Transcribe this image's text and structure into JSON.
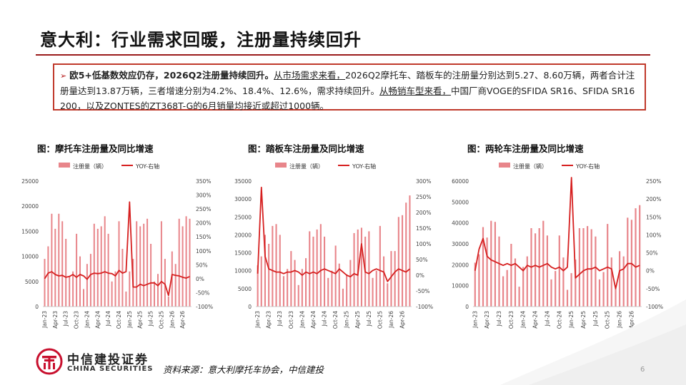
{
  "title": "意大利：行业需求回暖，注册量持续回升",
  "summary": {
    "bullet": "➢",
    "bold_lead": "欧5+低基数效应仍存，2026Q2注册量持续回升。",
    "underline_1": "从市场需求来看，",
    "text_1": "2026Q2摩托车、踏板车的注册量分别达到5.27、8.60万辆，两者合计注册量达到13.87万辆，三者增速分别为4.2%、18.4%、12.6%，需求持续回升。",
    "underline_2": "从畅销车型来看，",
    "text_2": "中国厂商VOGE的SFIDA SR16、SFIDA SR16 200，以及ZONTES的ZT368T-G的6月销量均接近或超过1000辆。"
  },
  "footer": {
    "source": "资料来源：意大利摩托车协会，中信建投",
    "page": "6",
    "logo_cn": "中信建投证券",
    "logo_en": "CHINA SECURITIES"
  },
  "colors": {
    "bar": "#e8858a",
    "line": "#d61f1f",
    "accent": "#9b1b1b",
    "box": "#c0392b"
  },
  "chart_data": [
    {
      "type": "bar",
      "title": "图：摩托车注册量及同比增速",
      "legend": [
        "注册量（辆）",
        "YOY-右轴"
      ],
      "legend_position": "top",
      "categories": [
        "Jan-23",
        "Feb-23",
        "Mar-23",
        "Apr-23",
        "May-23",
        "Jun-23",
        "Jul-23",
        "Aug-23",
        "Sep-23",
        "Oct-23",
        "Nov-23",
        "Dec-23",
        "Jan-24",
        "Feb-24",
        "Mar-24",
        "Apr-24",
        "May-24",
        "Jun-24",
        "Jul-24",
        "Aug-24",
        "Sep-24",
        "Oct-24",
        "Nov-24",
        "Dec-24",
        "Jan-25",
        "Feb-25",
        "Mar-25",
        "Apr-25",
        "May-25",
        "Jun-25",
        "Jul-25",
        "Aug-25",
        "Sep-25",
        "Oct-25",
        "Nov-25",
        "Dec-25",
        "Jan-26",
        "Feb-26",
        "Mar-26",
        "Apr-26",
        "May-26",
        "Jun-26"
      ],
      "tick_labels": [
        "Jan-23",
        "Apr-23",
        "Jul-23",
        "Oct-23",
        "Jan-24",
        "Apr-24",
        "Jul-24",
        "Oct-24",
        "Jan-25",
        "Apr-25",
        "Jul-25",
        "Oct-25",
        "Jan-26",
        "Apr-26"
      ],
      "series": [
        {
          "name": "注册量（辆）",
          "axis": "left",
          "type": "bar",
          "values": [
            9500,
            12000,
            18500,
            15500,
            18500,
            17000,
            13500,
            6000,
            7000,
            14500,
            10000,
            3500,
            8500,
            10500,
            16500,
            15500,
            16000,
            18000,
            14500,
            5000,
            7000,
            17000,
            11500,
            3000,
            7000,
            9500,
            17000,
            16000,
            16500,
            17500,
            12500,
            5000,
            6500,
            17000,
            9500,
            2000,
            11000,
            8500,
            17500,
            16000,
            18000,
            17500
          ]
        },
        {
          "name": "YOY-右轴",
          "axis": "right",
          "type": "line",
          "values": [
            0,
            20,
            25,
            15,
            10,
            12,
            5,
            8,
            15,
            5,
            15,
            10,
            -2,
            15,
            20,
            18,
            20,
            25,
            20,
            18,
            10,
            30,
            20,
            25,
            275,
            -30,
            -30,
            -20,
            -25,
            -20,
            -15,
            -15,
            -25,
            -10,
            -20,
            -60,
            15,
            12,
            10,
            5,
            2,
            8
          ]
        }
      ],
      "ylim_left": [
        0,
        25000
      ],
      "ylim_right": [
        -100,
        350
      ],
      "yticks_left": [
        "0",
        "5000",
        "10000",
        "15000",
        "20000",
        "25000"
      ],
      "yticks_right": [
        "-100%",
        "-50%",
        "0%",
        "50%",
        "100%",
        "150%",
        "200%",
        "250%",
        "300%",
        "350%"
      ]
    },
    {
      "type": "bar",
      "title": "图：踏板车注册量及同比增速",
      "legend": [
        "注册量（辆）",
        "YOY-右轴"
      ],
      "legend_position": "top",
      "categories": [
        "Jan-23",
        "Feb-23",
        "Mar-23",
        "Apr-23",
        "May-23",
        "Jun-23",
        "Jul-23",
        "Aug-23",
        "Sep-23",
        "Oct-23",
        "Nov-23",
        "Dec-23",
        "Jan-24",
        "Feb-24",
        "Mar-24",
        "Apr-24",
        "May-24",
        "Jun-24",
        "Jul-24",
        "Aug-24",
        "Sep-24",
        "Oct-24",
        "Nov-24",
        "Dec-24",
        "Jan-25",
        "Feb-25",
        "Mar-25",
        "Apr-25",
        "May-25",
        "Jun-25",
        "Jul-25",
        "Aug-25",
        "Sep-25",
        "Oct-25",
        "Nov-25",
        "Dec-25",
        "Jan-26",
        "Feb-26",
        "Mar-26",
        "Apr-26",
        "May-26",
        "Jun-26"
      ],
      "tick_labels": [
        "Jan-23",
        "Apr-23",
        "Jul-23",
        "Oct-23",
        "Jan-24",
        "Apr-24",
        "Jul-24",
        "Oct-24",
        "Jan-25",
        "Apr-25",
        "Jul-25",
        "Oct-25",
        "Jan-26",
        "Apr-26"
      ],
      "series": [
        {
          "name": "注册量（辆）",
          "axis": "left",
          "type": "bar",
          "values": [
            11500,
            14000,
            20000,
            17500,
            22500,
            23000,
            20000,
            8500,
            10500,
            15500,
            13000,
            6000,
            10500,
            13500,
            21000,
            19500,
            21500,
            23000,
            19500,
            8000,
            10000,
            17000,
            12000,
            5000,
            9000,
            13000,
            20500,
            21500,
            22000,
            19500,
            21000,
            8000,
            10000,
            22500,
            14000,
            6500,
            15500,
            15500,
            25000,
            25500,
            29000,
            31000
          ]
        },
        {
          "name": "YOY-右轴",
          "axis": "right",
          "type": "line",
          "values": [
            5,
            280,
            60,
            20,
            15,
            10,
            10,
            5,
            10,
            10,
            15,
            10,
            0,
            10,
            5,
            10,
            5,
            15,
            20,
            15,
            10,
            5,
            20,
            10,
            0,
            -5,
            5,
            0,
            100,
            10,
            5,
            15,
            20,
            15,
            10,
            -20,
            -5,
            10,
            20,
            15,
            10,
            20
          ]
        }
      ],
      "ylim_left": [
        0,
        35000
      ],
      "ylim_right": [
        -100,
        300
      ],
      "yticks_left": [
        "0",
        "5000",
        "10000",
        "15000",
        "20000",
        "25000",
        "30000",
        "35000"
      ],
      "yticks_right": [
        "-100%",
        "-50%",
        "0%",
        "50%",
        "100%",
        "150%",
        "200%",
        "250%",
        "300%"
      ]
    },
    {
      "type": "bar",
      "title": "图：两轮车注册量及同比增速",
      "legend": [
        "注册量（辆）",
        "YOY-右轴"
      ],
      "legend_position": "top",
      "categories": [
        "Jan-23",
        "Feb-23",
        "Mar-23",
        "Apr-23",
        "May-23",
        "Jun-23",
        "Jul-23",
        "Aug-23",
        "Sep-23",
        "Oct-23",
        "Nov-23",
        "Dec-23",
        "Jan-24",
        "Feb-24",
        "Mar-24",
        "Apr-24",
        "May-24",
        "Jun-24",
        "Jul-24",
        "Aug-24",
        "Sep-24",
        "Oct-24",
        "Nov-24",
        "Dec-24",
        "Jan-25",
        "Feb-25",
        "Mar-25",
        "Apr-25",
        "May-25",
        "Jun-25",
        "Jul-25",
        "Aug-25",
        "Sep-25",
        "Oct-25",
        "Nov-25",
        "Dec-25",
        "Jan-26",
        "Feb-26",
        "Mar-26",
        "Apr-26",
        "May-26",
        "Jun-26"
      ],
      "tick_labels": [
        "Jan-23",
        "Apr-23",
        "Jul-23",
        "Oct-23",
        "Jan-24",
        "Apr-24",
        "Jul-24",
        "Oct-24",
        "Jan-25",
        "Apr-25",
        "Jul-25",
        "Oct-25",
        "Jan-26",
        "Apr-26"
      ],
      "series": [
        {
          "name": "注册量（辆）",
          "axis": "left",
          "type": "bar",
          "values": [
            21000,
            25000,
            38000,
            33000,
            41000,
            40500,
            33500,
            14500,
            17500,
            30000,
            23000,
            9500,
            19000,
            24000,
            37500,
            35000,
            37500,
            41000,
            34000,
            13000,
            17000,
            34000,
            23500,
            8000,
            16000,
            22500,
            37500,
            37500,
            38500,
            37000,
            33500,
            13000,
            16500,
            39500,
            23500,
            8500,
            26500,
            24000,
            42500,
            41500,
            47000,
            48500
          ]
        },
        {
          "name": "YOY-右轴",
          "axis": "right",
          "type": "line",
          "values": [
            0,
            60,
            90,
            40,
            30,
            25,
            20,
            15,
            20,
            15,
            20,
            10,
            0,
            15,
            10,
            15,
            10,
            15,
            20,
            10,
            5,
            10,
            0,
            10,
            260,
            -20,
            -10,
            0,
            5,
            5,
            10,
            0,
            5,
            10,
            5,
            -50,
            0,
            5,
            20,
            20,
            10,
            15
          ]
        }
      ],
      "ylim_left": [
        0,
        60000
      ],
      "ylim_right": [
        -100,
        250
      ],
      "yticks_left": [
        "0",
        "10000",
        "20000",
        "30000",
        "40000",
        "50000",
        "60000"
      ],
      "yticks_right": [
        "-100%",
        "-50%",
        "0%",
        "50%",
        "100%",
        "150%",
        "200%",
        "250%"
      ]
    }
  ]
}
